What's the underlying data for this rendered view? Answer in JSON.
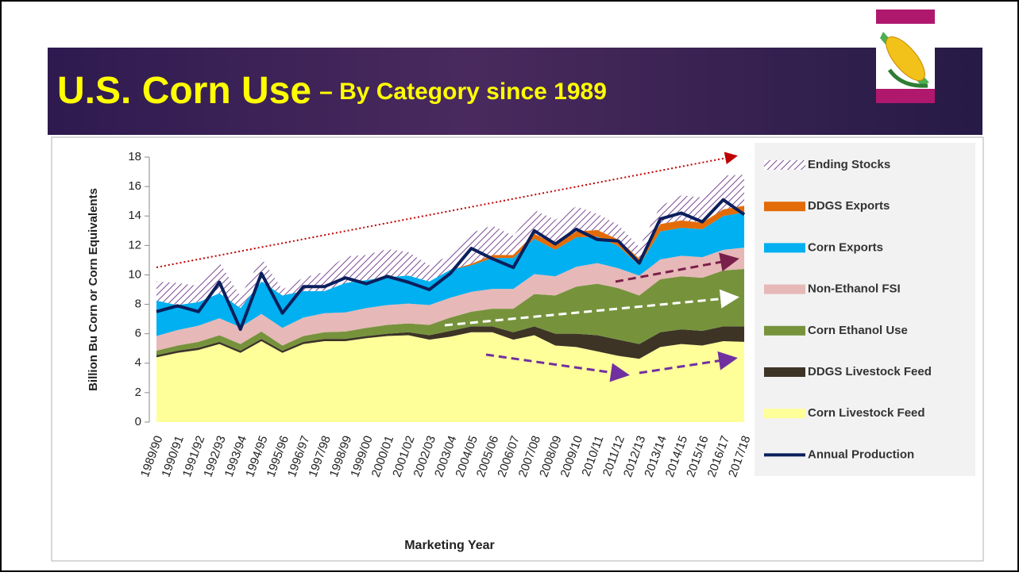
{
  "chart_data": {
    "type": "stacked_area",
    "title": "U.S. Corn Use",
    "subtitle": "– By Category since 1989",
    "y_label": "Billion Bu Corn or Corn Equivalents",
    "x_label": "Marketing Year",
    "categories": [
      "1989/90",
      "1990/91",
      "1991/92",
      "1992/93",
      "1993/94",
      "1994/95",
      "1995/96",
      "1996/97",
      "1997/98",
      "1998/99",
      "1999/00",
      "2000/01",
      "2001/02",
      "2002/03",
      "2003/04",
      "2004/05",
      "2005/06",
      "2006/07",
      "2007/08",
      "2008/09",
      "2009/10",
      "2010/11",
      "2011/12",
      "2012/13",
      "2013/14",
      "2014/15",
      "2015/16",
      "2016/17",
      "2017/18"
    ],
    "ylim": [
      0,
      18
    ],
    "yticks": [
      0,
      2,
      4,
      6,
      8,
      10,
      12,
      14,
      16,
      18
    ],
    "grid": false,
    "legend": "right",
    "series": [
      {
        "name": "Corn Livestock Feed",
        "color": "#ffff99",
        "values": [
          4.4,
          4.7,
          4.9,
          5.3,
          4.7,
          5.5,
          4.7,
          5.3,
          5.5,
          5.5,
          5.7,
          5.85,
          5.9,
          5.6,
          5.8,
          6.1,
          6.1,
          5.6,
          5.9,
          5.2,
          5.1,
          4.8,
          4.5,
          4.3,
          5.1,
          5.3,
          5.2,
          5.5,
          5.45
        ]
      },
      {
        "name": "DDGS Livestock Feed",
        "color": "#3d3426",
        "values": [
          0.15,
          0.15,
          0.15,
          0.15,
          0.15,
          0.15,
          0.15,
          0.15,
          0.15,
          0.15,
          0.15,
          0.15,
          0.2,
          0.3,
          0.4,
          0.4,
          0.4,
          0.5,
          0.6,
          0.8,
          0.9,
          1.1,
          1.1,
          1.0,
          1.0,
          1.0,
          1.0,
          1.0,
          1.05
        ]
      },
      {
        "name": "Corn Ethanol Use",
        "color": "#76933c",
        "values": [
          0.3,
          0.35,
          0.4,
          0.45,
          0.45,
          0.5,
          0.35,
          0.4,
          0.45,
          0.5,
          0.55,
          0.6,
          0.6,
          0.7,
          0.9,
          1.0,
          1.2,
          1.6,
          2.2,
          2.6,
          3.2,
          3.5,
          3.5,
          3.3,
          3.6,
          3.6,
          3.6,
          3.8,
          3.9
        ]
      },
      {
        "name": "Non-Ethanol FSI",
        "color": "#e6b8b7",
        "values": [
          1.0,
          1.05,
          1.1,
          1.15,
          1.15,
          1.2,
          1.2,
          1.25,
          1.3,
          1.3,
          1.35,
          1.35,
          1.35,
          1.35,
          1.35,
          1.35,
          1.35,
          1.35,
          1.35,
          1.3,
          1.35,
          1.4,
          1.35,
          1.35,
          1.35,
          1.4,
          1.4,
          1.4,
          1.45
        ]
      },
      {
        "name": "Corn Exports",
        "color": "#00b0f0",
        "values": [
          2.4,
          1.7,
          1.6,
          1.7,
          1.3,
          2.2,
          2.2,
          1.8,
          1.5,
          2.0,
          1.9,
          1.9,
          1.9,
          1.6,
          1.9,
          1.8,
          2.1,
          2.1,
          2.4,
          1.8,
          2.0,
          1.8,
          1.5,
          0.7,
          1.9,
          1.9,
          1.9,
          2.3,
          2.4
        ]
      },
      {
        "name": "DDGS Exports",
        "color": "#e36c09",
        "values": [
          0,
          0,
          0,
          0,
          0,
          0,
          0,
          0,
          0,
          0,
          0,
          0,
          0,
          0,
          0,
          0.1,
          0.2,
          0.2,
          0.35,
          0.35,
          0.4,
          0.45,
          0.45,
          0.45,
          0.5,
          0.5,
          0.45,
          0.45,
          0.45
        ]
      },
      {
        "name": "Ending Stocks",
        "color": "#7b4b94",
        "hatch": true,
        "values": [
          1.3,
          1.5,
          1.1,
          2.1,
          0.8,
          1.6,
          0.4,
          0.9,
          1.3,
          1.8,
          1.7,
          1.9,
          1.6,
          1.1,
          1.0,
          2.1,
          2.0,
          1.3,
          1.6,
          1.7,
          1.7,
          1.1,
          1.0,
          0.8,
          1.2,
          1.7,
          1.7,
          2.3,
          2.1
        ]
      },
      {
        "name": "Annual Production",
        "color": "#0b1f5c",
        "type": "line",
        "values": [
          7.5,
          7.9,
          7.5,
          9.5,
          6.3,
          10.1,
          7.4,
          9.2,
          9.2,
          9.8,
          9.4,
          9.9,
          9.5,
          9.0,
          10.1,
          11.8,
          11.1,
          10.5,
          13.0,
          12.1,
          13.1,
          12.4,
          12.3,
          10.8,
          13.8,
          14.2,
          13.6,
          15.1,
          14.1
        ]
      }
    ]
  }
}
